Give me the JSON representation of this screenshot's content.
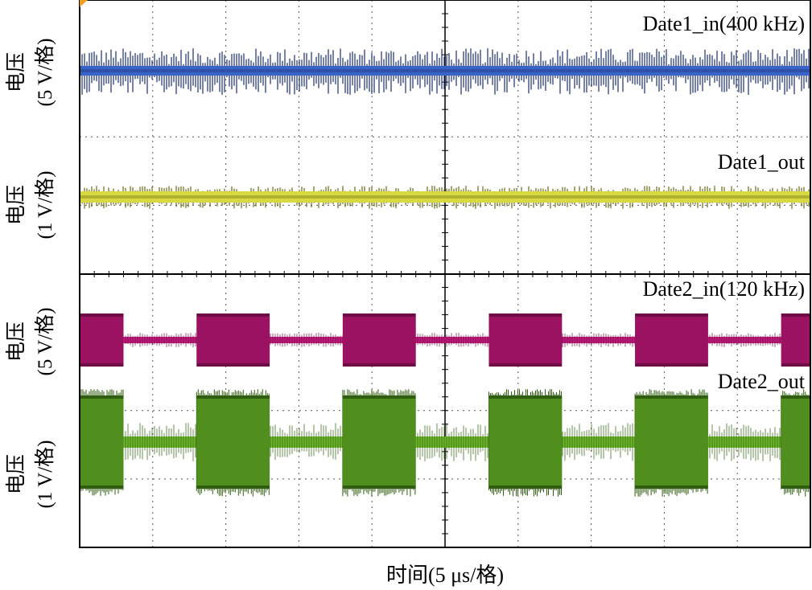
{
  "chart_data": {
    "type": "line",
    "subtype": "oscilloscope-waveform",
    "xlabel": "时间(5 μs/格)",
    "x_divisions": 10,
    "grid": true,
    "series": [
      {
        "name": "Date1_in(400 kHz)",
        "ylabel_main": "电压",
        "ylabel_scale": "(5 V/格)",
        "waveform": "continuous",
        "color": "#3a63c8",
        "color_dark": "#1c2f68"
      },
      {
        "name": "Date1_out",
        "ylabel_main": "电压",
        "ylabel_scale": "(1 V/格)",
        "waveform": "continuous",
        "color": "#d8d840",
        "color_dark": "#6b6a18"
      },
      {
        "name": "Date2_in(120 kHz)",
        "ylabel_main": "电压",
        "ylabel_scale": "(5 V/格)",
        "waveform": "burst",
        "color": "#c2187a",
        "color_dark": "#6e0d45"
      },
      {
        "name": "Date2_out",
        "ylabel_main": "电压",
        "ylabel_scale": "(1 V/格)",
        "waveform": "burst",
        "color": "#6cb82a",
        "color_dark": "#2f5e10"
      }
    ],
    "burst_on_intervals_div": [
      [
        0,
        0.6
      ],
      [
        1.6,
        2.6
      ],
      [
        3.6,
        4.6
      ],
      [
        5.6,
        6.6
      ],
      [
        7.6,
        8.6
      ],
      [
        9.6,
        10
      ]
    ]
  }
}
